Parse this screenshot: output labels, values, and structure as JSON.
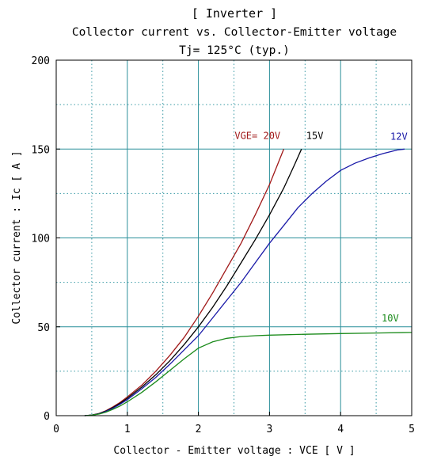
{
  "chart_data": {
    "type": "line",
    "title_lines": [
      "[ Inverter ]",
      "Collector current  vs.  Collector-Emitter voltage",
      "Tj= 125°C   (typ.)"
    ],
    "xlabel": "Collector - Emitter voltage  :  VCE  [ V ]",
    "ylabel": "Collector current  :  Ic  [ A ]",
    "xlim": [
      0,
      5
    ],
    "ylim": [
      0,
      200
    ],
    "xticks": [
      0,
      1,
      2,
      3,
      4,
      5
    ],
    "yticks": [
      0,
      50,
      100,
      150,
      200
    ],
    "xtick_labels": [
      "0",
      "1",
      "2",
      "3",
      "4",
      "5"
    ],
    "ytick_labels": [
      "0",
      "50",
      "100",
      "150",
      "200"
    ],
    "major_grid_x": [
      1,
      2,
      3,
      4
    ],
    "major_grid_y": [
      50,
      100,
      150
    ],
    "minor_grid_x": [
      0.5,
      1.5,
      2.5,
      3.5,
      4.5
    ],
    "minor_grid_y": [
      25,
      75,
      125,
      175
    ],
    "grid_major_color": "#2a8f9a",
    "grid_minor_color": "#3a9aa5",
    "series": [
      {
        "name": "VGE= 20V",
        "color": "#a01818",
        "points": [
          [
            0.4,
            0
          ],
          [
            0.5,
            0.3
          ],
          [
            0.6,
            1.2
          ],
          [
            0.7,
            2.8
          ],
          [
            0.8,
            5
          ],
          [
            0.9,
            7.5
          ],
          [
            1.0,
            10.5
          ],
          [
            1.2,
            17
          ],
          [
            1.4,
            25
          ],
          [
            1.6,
            34
          ],
          [
            1.8,
            44
          ],
          [
            2.0,
            56
          ],
          [
            2.2,
            69
          ],
          [
            2.4,
            83
          ],
          [
            2.6,
            97
          ],
          [
            2.8,
            113
          ],
          [
            3.0,
            130
          ],
          [
            3.1,
            140
          ],
          [
            3.2,
            150
          ]
        ]
      },
      {
        "name": "15V",
        "color": "#000000",
        "points": [
          [
            0.4,
            0
          ],
          [
            0.5,
            0.3
          ],
          [
            0.6,
            1.1
          ],
          [
            0.7,
            2.6
          ],
          [
            0.8,
            4.6
          ],
          [
            0.9,
            7
          ],
          [
            1.0,
            9.8
          ],
          [
            1.2,
            16
          ],
          [
            1.4,
            23
          ],
          [
            1.6,
            31
          ],
          [
            1.8,
            40
          ],
          [
            2.0,
            50
          ],
          [
            2.2,
            61
          ],
          [
            2.4,
            73
          ],
          [
            2.6,
            86
          ],
          [
            2.8,
            99
          ],
          [
            3.0,
            113
          ],
          [
            3.2,
            128
          ],
          [
            3.35,
            141
          ],
          [
            3.45,
            150
          ]
        ]
      },
      {
        "name": "12V",
        "color": "#1a1aa8",
        "points": [
          [
            0.4,
            0
          ],
          [
            0.5,
            0.3
          ],
          [
            0.6,
            1
          ],
          [
            0.7,
            2.4
          ],
          [
            0.8,
            4.2
          ],
          [
            0.9,
            6.5
          ],
          [
            1.0,
            9
          ],
          [
            1.2,
            15
          ],
          [
            1.4,
            21.5
          ],
          [
            1.6,
            29
          ],
          [
            1.8,
            37
          ],
          [
            2.0,
            45
          ],
          [
            2.2,
            55
          ],
          [
            2.4,
            65
          ],
          [
            2.6,
            75
          ],
          [
            2.8,
            86
          ],
          [
            3.0,
            97
          ],
          [
            3.2,
            107
          ],
          [
            3.4,
            117
          ],
          [
            3.6,
            125
          ],
          [
            3.8,
            132
          ],
          [
            4.0,
            138
          ],
          [
            4.2,
            142
          ],
          [
            4.4,
            145
          ],
          [
            4.6,
            147.5
          ],
          [
            4.8,
            149.5
          ],
          [
            4.9,
            150
          ]
        ]
      },
      {
        "name": "10V",
        "color": "#1a8a1a",
        "points": [
          [
            0.4,
            0
          ],
          [
            0.5,
            0.3
          ],
          [
            0.6,
            0.9
          ],
          [
            0.7,
            2
          ],
          [
            0.8,
            3.6
          ],
          [
            0.9,
            5.5
          ],
          [
            1.0,
            7.8
          ],
          [
            1.2,
            13
          ],
          [
            1.4,
            19
          ],
          [
            1.6,
            25.5
          ],
          [
            1.8,
            32
          ],
          [
            2.0,
            38
          ],
          [
            2.2,
            41.5
          ],
          [
            2.4,
            43.5
          ],
          [
            2.6,
            44.5
          ],
          [
            2.8,
            45
          ],
          [
            3.0,
            45.3
          ],
          [
            3.5,
            45.8
          ],
          [
            4.0,
            46.2
          ],
          [
            4.5,
            46.5
          ],
          [
            5.0,
            46.8
          ]
        ]
      }
    ]
  }
}
